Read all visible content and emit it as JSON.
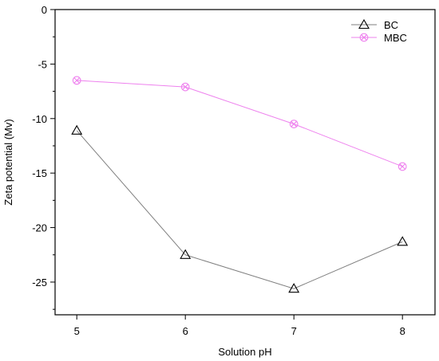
{
  "chart_data": {
    "type": "line",
    "title": "",
    "xlabel": "Solution pH",
    "ylabel": "Zeta potential (Mv)",
    "x": [
      5,
      6,
      7,
      8
    ],
    "xlim": [
      4.8,
      8.3
    ],
    "ylim": [
      -28,
      0
    ],
    "xticks": [
      "5",
      "6",
      "7",
      "8"
    ],
    "yticks": [
      "0",
      "-5",
      "-10",
      "-15",
      "-20",
      "-25"
    ],
    "grid": false,
    "legend_position": "top-right",
    "series": [
      {
        "name": "BC",
        "marker": "triangle",
        "color": "#7f7f7f",
        "values": [
          -11.1,
          -22.5,
          -25.6,
          -21.3
        ]
      },
      {
        "name": "MBC",
        "marker": "circle-x",
        "color": "#ee82ee",
        "values": [
          -6.5,
          -7.1,
          -10.5,
          -14.4
        ]
      }
    ]
  }
}
